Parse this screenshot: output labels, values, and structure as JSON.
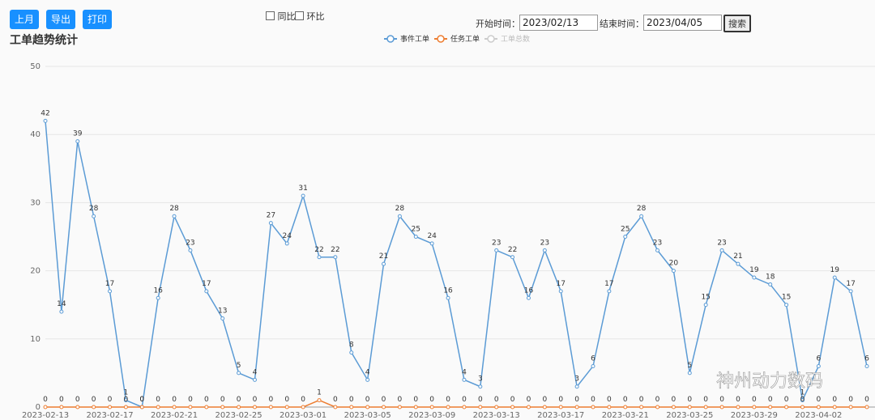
{
  "toolbar": {
    "buttons": [
      "上月",
      "导出",
      "打印"
    ],
    "checkboxes": [
      "同比",
      "环比"
    ],
    "start_label": "开始时间：",
    "start_date": "2023/02/13",
    "end_label": "结束时间：",
    "end_date": "2023/04/05",
    "search": "搜索"
  },
  "watermark": "神州动力数码",
  "chart_data": {
    "type": "line",
    "title": "工单趋势统计",
    "categories": [
      "2023-02-13",
      null,
      null,
      null,
      "2023-02-17",
      null,
      null,
      null,
      "2023-02-21",
      null,
      null,
      null,
      "2023-02-25",
      null,
      null,
      null,
      "2023-03-01",
      null,
      null,
      null,
      "2023-03-05",
      null,
      null,
      null,
      "2023-03-09",
      null,
      null,
      null,
      "2023-03-13",
      null,
      null,
      null,
      "2023-03-17",
      null,
      null,
      null,
      "2023-03-21",
      null,
      null,
      null,
      "2023-03-25",
      null,
      null,
      null,
      "2023-03-29",
      null,
      null,
      null,
      "2023-04-02",
      null,
      null,
      null
    ],
    "series": [
      {
        "name": "事件工单",
        "color": "#5b9bd5",
        "values": [
          42,
          14,
          39,
          28,
          17,
          1,
          0,
          16,
          28,
          23,
          17,
          13,
          5,
          4,
          27,
          24,
          31,
          22,
          22,
          8,
          4,
          21,
          28,
          25,
          24,
          16,
          4,
          3,
          23,
          22,
          16,
          23,
          17,
          3,
          6,
          17,
          25,
          28,
          23,
          20,
          5,
          15,
          23,
          21,
          19,
          18,
          15,
          1,
          6,
          19,
          17,
          6
        ]
      },
      {
        "name": "任务工单",
        "color": "#ed7d31",
        "values": [
          0,
          0,
          0,
          0,
          0,
          0,
          0,
          0,
          0,
          0,
          0,
          0,
          0,
          0,
          0,
          0,
          0,
          1,
          0,
          0,
          0,
          0,
          0,
          0,
          0,
          0,
          0,
          0,
          0,
          0,
          0,
          0,
          0,
          0,
          0,
          0,
          0,
          0,
          0,
          0,
          0,
          0,
          0,
          0,
          0,
          0,
          0,
          0,
          0,
          0,
          0,
          0
        ]
      },
      {
        "name": "工单总数",
        "color": "#cccccc",
        "visible": false
      }
    ],
    "ylim": [
      0,
      50
    ],
    "yticks": [
      0,
      10,
      20,
      30,
      40,
      50
    ],
    "grid": true,
    "legend": "top"
  }
}
